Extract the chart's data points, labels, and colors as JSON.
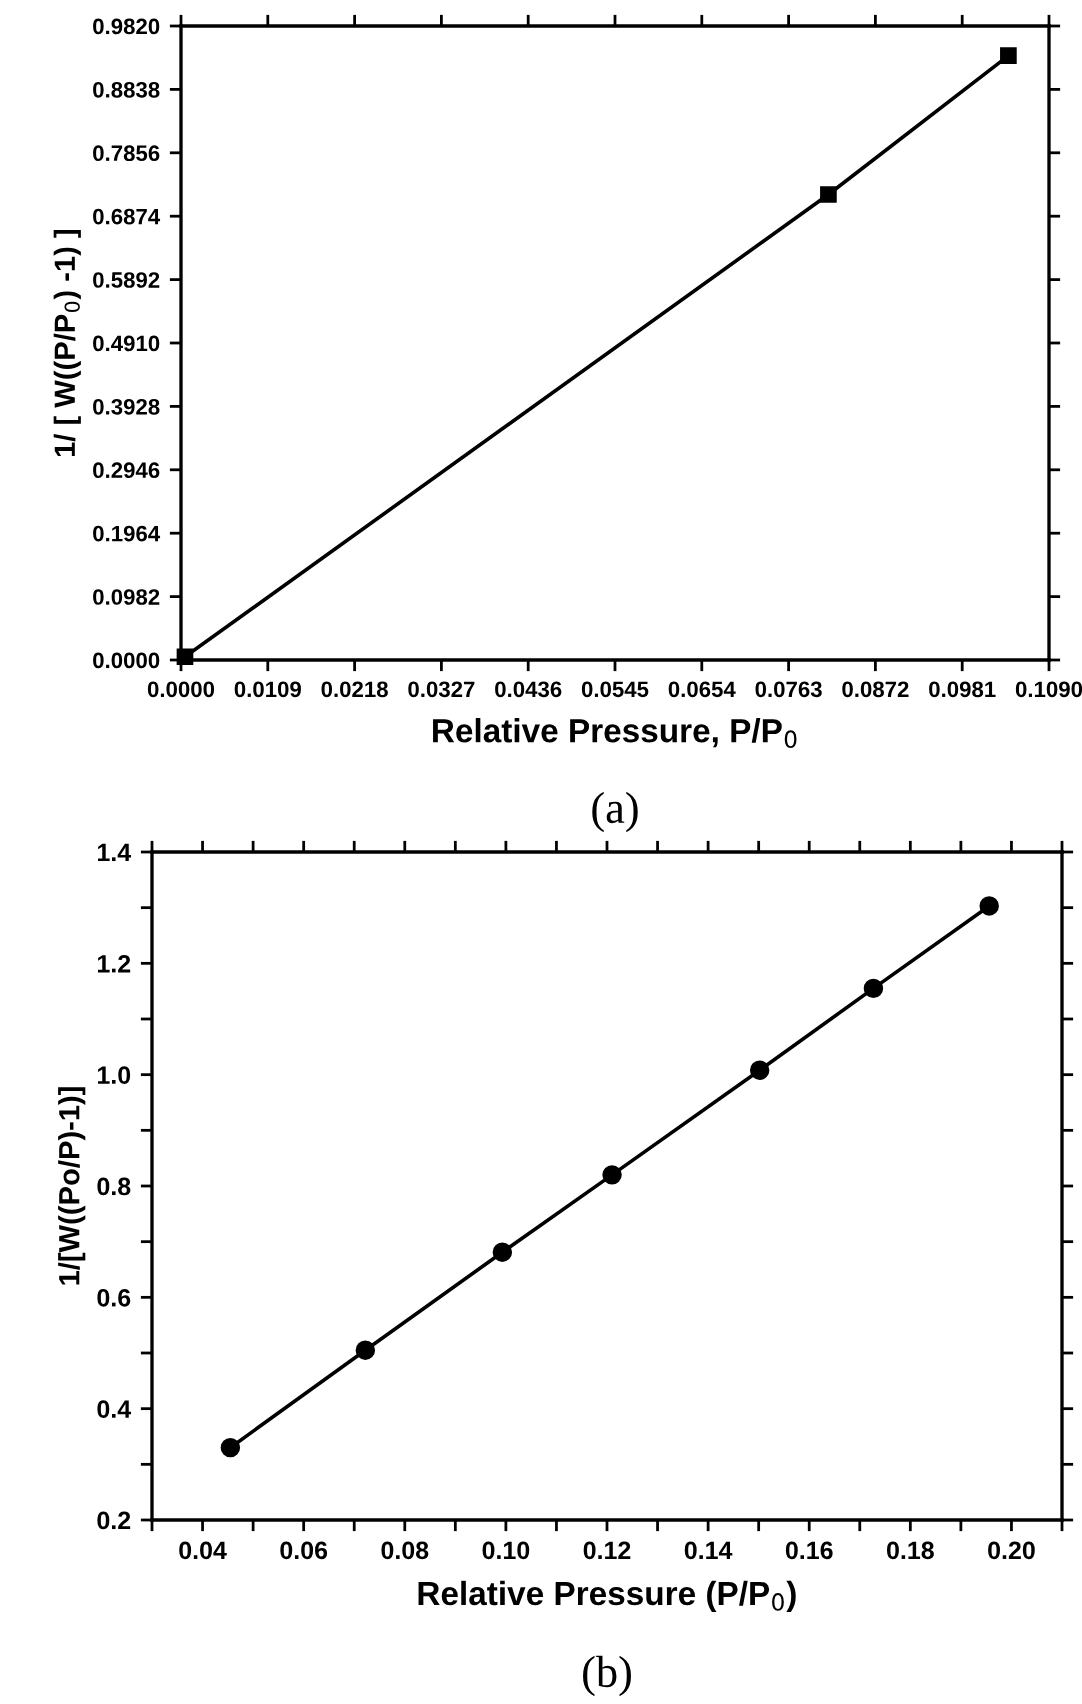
{
  "chart_data": [
    {
      "type": "line",
      "xlabel": "Relative Pressure, P/P$_{0}$",
      "ylabel": "1/ [ W((P/P$_{0}$) -1) ]",
      "annotations": [
        "(a)"
      ],
      "x": [
        0.0005,
        0.0813,
        0.1039
      ],
      "values": [
        0.005,
        0.721,
        0.936
      ],
      "color": "#000000",
      "marker": "square",
      "line_style": "solid",
      "grid": false,
      "xlim": [
        0,
        0.109
      ],
      "ylim": [
        0,
        0.982
      ],
      "xticks": [
        {
          "value": 0,
          "label": "0.0000"
        },
        0.0109,
        0.0218,
        0.0327,
        0.0436,
        0.0545,
        0.0654,
        0.0763,
        0.0872,
        0.0981,
        {
          "value": 0.109,
          "label": "0.1090"
        }
      ],
      "yticks": [
        {
          "value": 0,
          "label": "0.0000"
        },
        0.0982,
        0.1964,
        0.2946,
        0.3928,
        {
          "value": 0.491,
          "label": "0.4910"
        },
        0.5892,
        0.6874,
        0.7856,
        0.8838,
        {
          "value": 0.982,
          "label": "0.9820"
        }
      ]
    },
    {
      "type": "line",
      "xlabel": "Relative Pressure (P/P$_{0}$)",
      "ylabel": "1/[W((Po/P)-1)]",
      "annotations": [
        "(b)"
      ],
      "x": [
        0.0455,
        0.0722,
        0.0993,
        0.121,
        0.1502,
        0.1727,
        0.1956
      ],
      "values": [
        0.33,
        0.505,
        0.681,
        0.82,
        1.008,
        1.155,
        1.303
      ],
      "color": "#000000",
      "marker": "circle",
      "line_style": "solid",
      "grid": false,
      "xlim": [
        0.03,
        0.21
      ],
      "ylim": [
        0.2,
        1.4
      ],
      "xticks": [
        {
          "value": 0.03,
          "label": null
        },
        {
          "value": 0.04,
          "label": "0.04"
        },
        {
          "value": 0.05,
          "label": null
        },
        {
          "value": 0.06,
          "label": "0.06"
        },
        {
          "value": 0.07,
          "label": null
        },
        {
          "value": 0.08,
          "label": "0.08"
        },
        {
          "value": 0.09,
          "label": null
        },
        {
          "value": 0.1,
          "label": "0.10"
        },
        {
          "value": 0.11,
          "label": null
        },
        {
          "value": 0.12,
          "label": "0.12"
        },
        {
          "value": 0.13,
          "label": null
        },
        {
          "value": 0.14,
          "label": "0.14"
        },
        {
          "value": 0.15,
          "label": null
        },
        {
          "value": 0.16,
          "label": "0.16"
        },
        {
          "value": 0.17,
          "label": null
        },
        {
          "value": 0.18,
          "label": "0.18"
        },
        {
          "value": 0.19,
          "label": null
        },
        {
          "value": 0.2,
          "label": "0.20"
        },
        {
          "value": 0.21,
          "label": null
        }
      ],
      "yticks": [
        0.2,
        {
          "value": 0.3,
          "label": null
        },
        0.4,
        {
          "value": 0.5,
          "label": null
        },
        0.6,
        {
          "value": 0.7,
          "label": null
        },
        0.8,
        {
          "value": 0.9,
          "label": null
        },
        {
          "value": 1.0,
          "label": "1.0"
        },
        {
          "value": 1.1,
          "label": null
        },
        1.2,
        {
          "value": 1.3,
          "label": null
        },
        1.4
      ]
    }
  ]
}
